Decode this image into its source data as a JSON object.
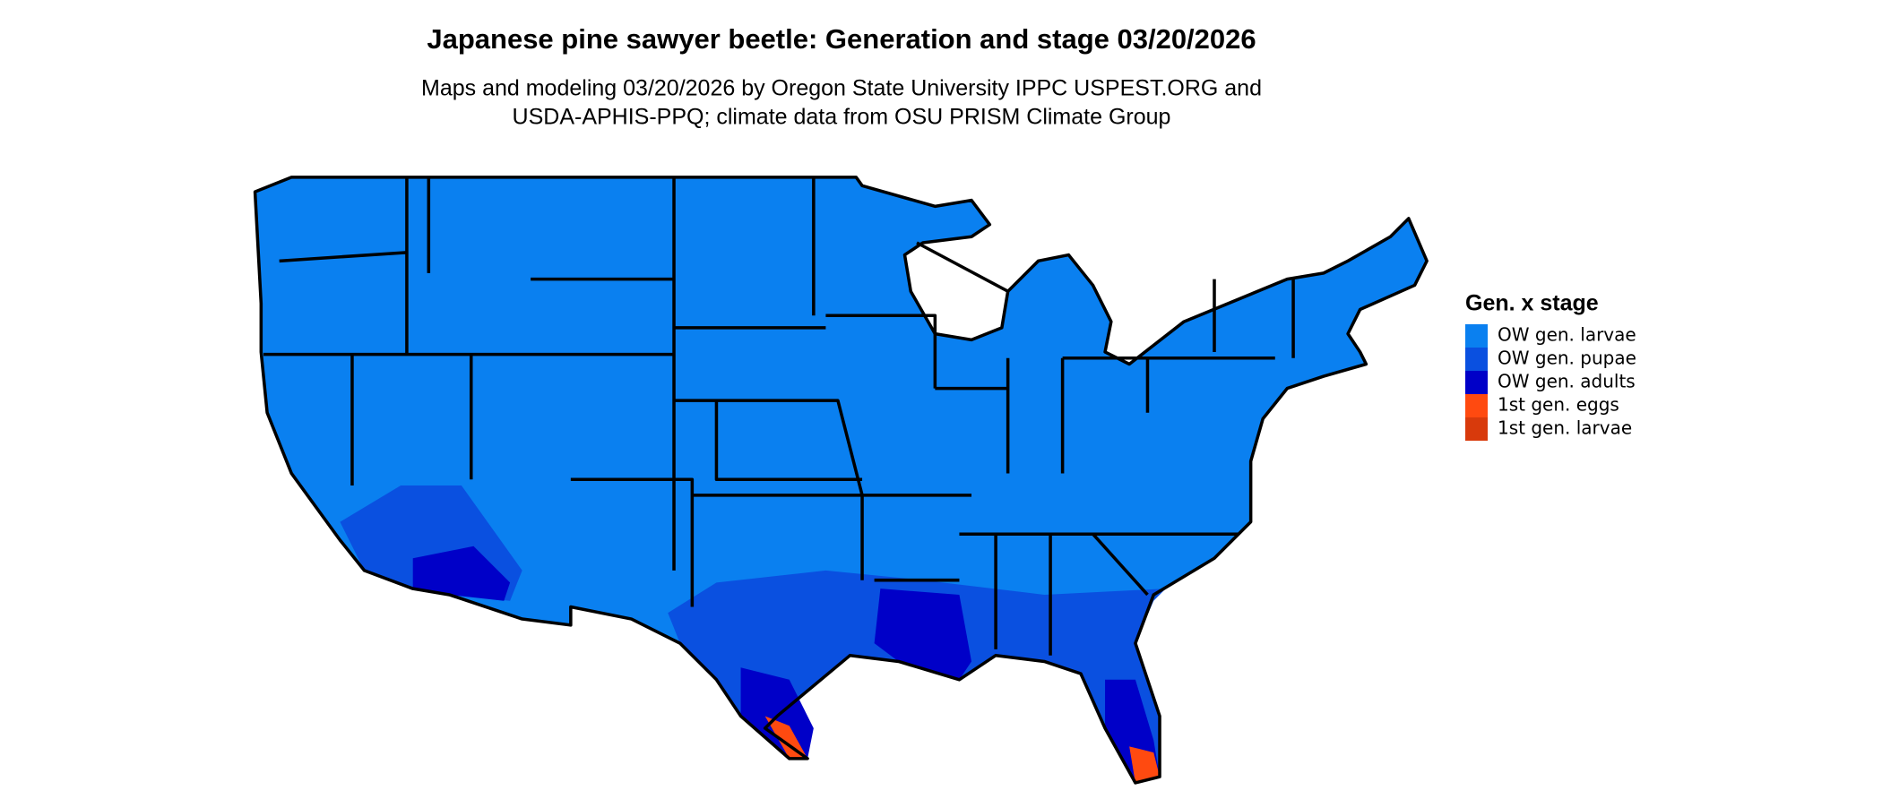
{
  "header": {
    "title": "Japanese pine sawyer beetle: Generation and stage 03/20/2026",
    "subtitle_lines": [
      "Maps and modeling 03/20/2026 by Oregon State University IPPC USPEST.ORG and",
      "USDA-APHIS-PPQ; climate data from OSU PRISM Climate Group"
    ]
  },
  "legend": {
    "title": "Gen. x stage",
    "items": [
      {
        "label": "OW gen. larvae",
        "color": "#0a80f0"
      },
      {
        "label": "OW gen. pupae",
        "color": "#0a50e0"
      },
      {
        "label": "OW gen. adults",
        "color": "#0000c8"
      },
      {
        "label": "1st gen. eggs",
        "color": "#ff4a10"
      },
      {
        "label": "1st gen. larvae",
        "color": "#d83a0c"
      }
    ]
  }
}
